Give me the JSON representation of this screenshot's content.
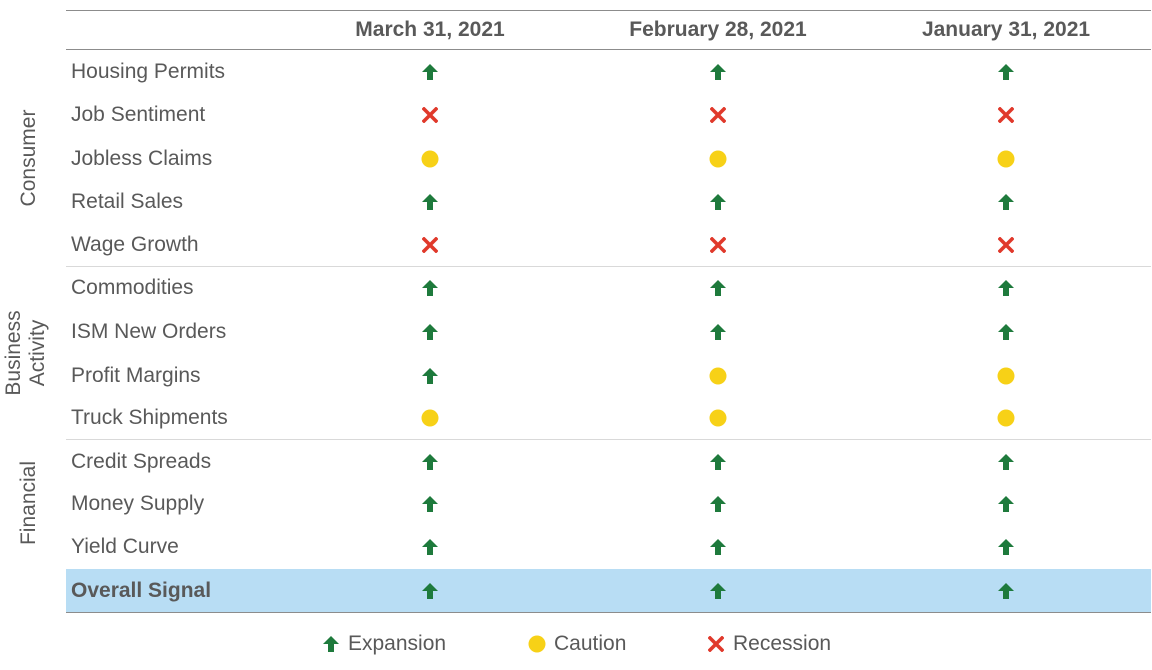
{
  "columns": [
    "March 31, 2021",
    "February 28, 2021",
    "January 31, 2021"
  ],
  "groups": [
    {
      "label": "Consumer",
      "rows": [
        0,
        1,
        2,
        3,
        4
      ]
    },
    {
      "label": "Business\nActivity",
      "rows": [
        5,
        6,
        7,
        8
      ]
    },
    {
      "label": "Financial",
      "rows": [
        9,
        10,
        11
      ]
    }
  ],
  "rows": [
    {
      "label": "Housing Permits",
      "signals": [
        "expansion",
        "expansion",
        "expansion"
      ]
    },
    {
      "label": "Job Sentiment",
      "signals": [
        "recession",
        "recession",
        "recession"
      ]
    },
    {
      "label": "Jobless Claims",
      "signals": [
        "caution",
        "caution",
        "caution"
      ]
    },
    {
      "label": "Retail Sales",
      "signals": [
        "expansion",
        "expansion",
        "expansion"
      ]
    },
    {
      "label": "Wage Growth",
      "signals": [
        "recession",
        "recession",
        "recession"
      ]
    },
    {
      "label": "Commodities",
      "signals": [
        "expansion",
        "expansion",
        "expansion"
      ]
    },
    {
      "label": "ISM New Orders",
      "signals": [
        "expansion",
        "expansion",
        "expansion"
      ]
    },
    {
      "label": "Profit Margins",
      "signals": [
        "expansion",
        "caution",
        "caution"
      ]
    },
    {
      "label": "Truck Shipments",
      "signals": [
        "caution",
        "caution",
        "caution"
      ]
    },
    {
      "label": "Credit Spreads",
      "signals": [
        "expansion",
        "expansion",
        "expansion"
      ]
    },
    {
      "label": "Money Supply",
      "signals": [
        "expansion",
        "expansion",
        "expansion"
      ]
    },
    {
      "label": "Yield Curve",
      "signals": [
        "expansion",
        "expansion",
        "expansion"
      ]
    }
  ],
  "overall": {
    "label": "Overall Signal",
    "signals": [
      "expansion",
      "expansion",
      "expansion"
    ]
  },
  "legend": [
    {
      "key": "expansion",
      "label": "Expansion",
      "icon": "up-arrow-icon"
    },
    {
      "key": "caution",
      "label": "Caution",
      "icon": "circle-icon"
    },
    {
      "key": "recession",
      "label": "Recession",
      "icon": "x-mark-icon"
    }
  ],
  "colors": {
    "expansion": "#1e7a3c",
    "caution": "#f7d117",
    "recession": "#e0392b",
    "overall_band": "#b8ddf4",
    "text": "#595959"
  },
  "chart_data": {
    "type": "table",
    "columns": [
      "March 31, 2021",
      "February 28, 2021",
      "January 31, 2021"
    ],
    "categories": [
      "Housing Permits",
      "Job Sentiment",
      "Jobless Claims",
      "Retail Sales",
      "Wage Growth",
      "Commodities",
      "ISM New Orders",
      "Profit Margins",
      "Truck Shipments",
      "Credit Spreads",
      "Money Supply",
      "Yield Curve",
      "Overall Signal"
    ],
    "values": [
      [
        "Expansion",
        "Expansion",
        "Expansion"
      ],
      [
        "Recession",
        "Recession",
        "Recession"
      ],
      [
        "Caution",
        "Caution",
        "Caution"
      ],
      [
        "Expansion",
        "Expansion",
        "Expansion"
      ],
      [
        "Recession",
        "Recession",
        "Recession"
      ],
      [
        "Expansion",
        "Expansion",
        "Expansion"
      ],
      [
        "Expansion",
        "Expansion",
        "Expansion"
      ],
      [
        "Expansion",
        "Caution",
        "Caution"
      ],
      [
        "Caution",
        "Caution",
        "Caution"
      ],
      [
        "Expansion",
        "Expansion",
        "Expansion"
      ],
      [
        "Expansion",
        "Expansion",
        "Expansion"
      ],
      [
        "Expansion",
        "Expansion",
        "Expansion"
      ],
      [
        "Expansion",
        "Expansion",
        "Expansion"
      ]
    ],
    "legend": [
      "Expansion",
      "Caution",
      "Recession"
    ]
  }
}
